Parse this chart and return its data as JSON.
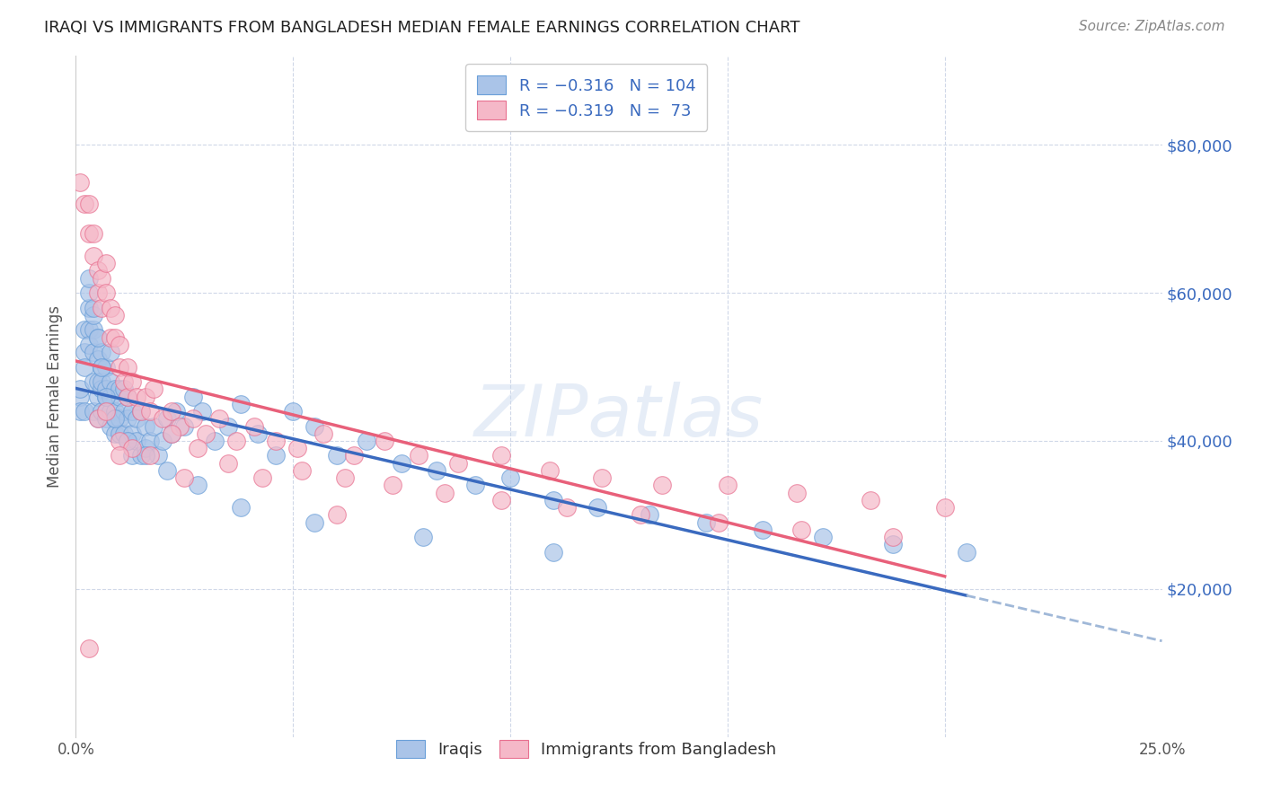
{
  "title": "IRAQI VS IMMIGRANTS FROM BANGLADESH MEDIAN FEMALE EARNINGS CORRELATION CHART",
  "source": "Source: ZipAtlas.com",
  "ylabel": "Median Female Earnings",
  "ytick_labels": [
    "$20,000",
    "$40,000",
    "$60,000",
    "$80,000"
  ],
  "ytick_values": [
    20000,
    40000,
    60000,
    80000
  ],
  "xlim": [
    0.0,
    0.25
  ],
  "ylim": [
    0,
    92000
  ],
  "iraqis_label": "Iraqis",
  "bangladesh_label": "Immigrants from Bangladesh",
  "watermark_text": "ZIPatlas",
  "iraqis_color": "#aac4e8",
  "bangladesh_color": "#f5b8c8",
  "iraqis_edge": "#6a9fd8",
  "bangladesh_edge": "#e87090",
  "trend_iraqis_color": "#3a6abf",
  "trend_bangladesh_color": "#e8607a",
  "trend_dashed_color": "#a0b8d8",
  "legend_iraq_color": "#aac4e8",
  "legend_bang_color": "#f5b8c8",
  "title_color": "#222222",
  "source_color": "#888888",
  "ytick_color": "#3a6abf",
  "xtick_color": "#555555",
  "grid_color": "#d0d8e8",
  "ylabel_color": "#555555",
  "iraqis_x": [
    0.001,
    0.001,
    0.001,
    0.002,
    0.002,
    0.002,
    0.002,
    0.003,
    0.003,
    0.003,
    0.003,
    0.004,
    0.004,
    0.004,
    0.004,
    0.004,
    0.005,
    0.005,
    0.005,
    0.005,
    0.005,
    0.006,
    0.006,
    0.006,
    0.006,
    0.006,
    0.007,
    0.007,
    0.007,
    0.007,
    0.007,
    0.008,
    0.008,
    0.008,
    0.008,
    0.008,
    0.009,
    0.009,
    0.009,
    0.009,
    0.01,
    0.01,
    0.01,
    0.01,
    0.011,
    0.011,
    0.011,
    0.012,
    0.012,
    0.012,
    0.013,
    0.013,
    0.013,
    0.014,
    0.014,
    0.015,
    0.015,
    0.016,
    0.016,
    0.017,
    0.018,
    0.019,
    0.02,
    0.021,
    0.022,
    0.023,
    0.025,
    0.027,
    0.029,
    0.032,
    0.035,
    0.038,
    0.042,
    0.046,
    0.05,
    0.055,
    0.06,
    0.067,
    0.075,
    0.083,
    0.092,
    0.1,
    0.11,
    0.12,
    0.132,
    0.145,
    0.158,
    0.172,
    0.188,
    0.205,
    0.003,
    0.004,
    0.005,
    0.006,
    0.007,
    0.009,
    0.012,
    0.016,
    0.021,
    0.028,
    0.038,
    0.055,
    0.08,
    0.11
  ],
  "iraqis_y": [
    46000,
    44000,
    47000,
    52000,
    55000,
    50000,
    44000,
    58000,
    55000,
    60000,
    53000,
    48000,
    52000,
    55000,
    57000,
    44000,
    46000,
    43000,
    51000,
    48000,
    54000,
    50000,
    47000,
    44000,
    48000,
    52000,
    46000,
    43000,
    50000,
    47000,
    44000,
    52000,
    46000,
    42000,
    48000,
    44000,
    44000,
    47000,
    41000,
    43000,
    46000,
    43000,
    47000,
    41000,
    44000,
    47000,
    41000,
    43000,
    40000,
    46000,
    44000,
    41000,
    38000,
    43000,
    40000,
    44000,
    38000,
    42000,
    39000,
    40000,
    42000,
    38000,
    40000,
    43000,
    41000,
    44000,
    42000,
    46000,
    44000,
    40000,
    42000,
    45000,
    41000,
    38000,
    44000,
    42000,
    38000,
    40000,
    37000,
    36000,
    34000,
    35000,
    32000,
    31000,
    30000,
    29000,
    28000,
    27000,
    26000,
    25000,
    62000,
    58000,
    54000,
    50000,
    46000,
    43000,
    40000,
    38000,
    36000,
    34000,
    31000,
    29000,
    27000,
    25000
  ],
  "bangladesh_x": [
    0.001,
    0.002,
    0.003,
    0.003,
    0.004,
    0.004,
    0.005,
    0.005,
    0.006,
    0.006,
    0.007,
    0.007,
    0.008,
    0.008,
    0.009,
    0.009,
    0.01,
    0.01,
    0.011,
    0.012,
    0.012,
    0.013,
    0.014,
    0.015,
    0.016,
    0.017,
    0.018,
    0.02,
    0.022,
    0.024,
    0.027,
    0.03,
    0.033,
    0.037,
    0.041,
    0.046,
    0.051,
    0.057,
    0.064,
    0.071,
    0.079,
    0.088,
    0.098,
    0.109,
    0.121,
    0.135,
    0.15,
    0.166,
    0.183,
    0.2,
    0.003,
    0.005,
    0.007,
    0.01,
    0.013,
    0.017,
    0.022,
    0.028,
    0.035,
    0.043,
    0.052,
    0.062,
    0.073,
    0.085,
    0.098,
    0.113,
    0.13,
    0.148,
    0.167,
    0.188,
    0.01,
    0.025,
    0.06
  ],
  "bangladesh_y": [
    75000,
    72000,
    68000,
    72000,
    65000,
    68000,
    60000,
    63000,
    62000,
    58000,
    64000,
    60000,
    54000,
    58000,
    54000,
    57000,
    50000,
    53000,
    48000,
    50000,
    46000,
    48000,
    46000,
    44000,
    46000,
    44000,
    47000,
    43000,
    44000,
    42000,
    43000,
    41000,
    43000,
    40000,
    42000,
    40000,
    39000,
    41000,
    38000,
    40000,
    38000,
    37000,
    38000,
    36000,
    35000,
    34000,
    34000,
    33000,
    32000,
    31000,
    12000,
    43000,
    44000,
    40000,
    39000,
    38000,
    41000,
    39000,
    37000,
    35000,
    36000,
    35000,
    34000,
    33000,
    32000,
    31000,
    30000,
    29000,
    28000,
    27000,
    38000,
    35000,
    30000
  ]
}
